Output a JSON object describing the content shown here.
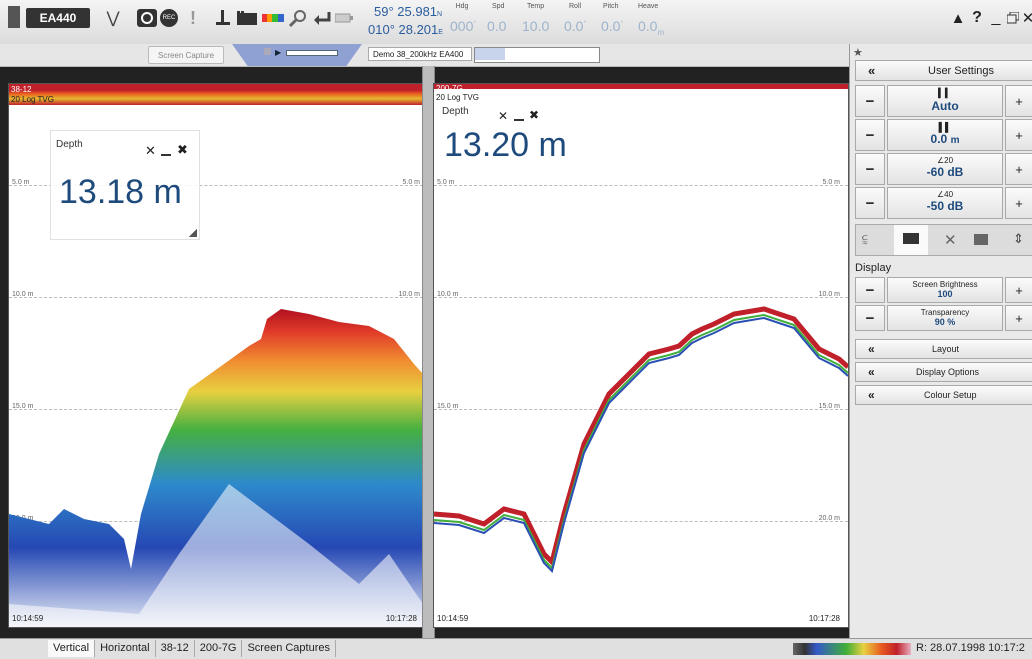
{
  "toolbar": {
    "logo_text": "EA440",
    "screen_capture_label": "Screen Capture",
    "source_label": "Demo 38_200kHz EA400",
    "position": {
      "lat": "59° 25.981",
      "lat_hemi": "N",
      "lon": "010° 28.201",
      "lon_hemi": "E"
    },
    "sensors": [
      {
        "label": "Hdg",
        "value": "000",
        "unit": "°"
      },
      {
        "label": "Spd",
        "value": "0.0",
        "unit": ""
      },
      {
        "label": "Temp",
        "value": "10.0",
        "unit": ""
      },
      {
        "label": "Roll",
        "value": "0.0",
        "unit": "°"
      },
      {
        "label": "Pitch",
        "value": "0.0",
        "unit": "°"
      },
      {
        "label": "Heave",
        "value": "0.0",
        "unit": "m"
      }
    ],
    "help_label": "?",
    "icons": [
      "logo-icon",
      "collapse-icon",
      "camera-icon",
      "record-icon",
      "alert-icon",
      "depth-icon",
      "bars-icon",
      "colorbar-icon",
      "zoom-icon",
      "return-icon",
      "battery-icon",
      "warning-icon",
      "minimize-icon",
      "restore-icon",
      "close-icon"
    ]
  },
  "left_echogram": {
    "channel": "38-12",
    "tvg": "20 Log TVG",
    "depth_title": "Depth",
    "depth_value": "13.18 m",
    "grid_labels": [
      "5.0 m",
      "10.0 m",
      "15.0 m",
      "20.0 m"
    ],
    "time_start": "10:14:59",
    "time_end": "10:17:28"
  },
  "right_echogram": {
    "channel": "200-7G",
    "tvg": "20 Log TVG",
    "depth_title": "Depth",
    "depth_value": "13.20 m",
    "grid_labels": [
      "5.0 m",
      "10.0 m",
      "15.0 m",
      "20.0 m"
    ],
    "time_start": "10:14:59",
    "time_end": "10:17:28"
  },
  "right_pane": {
    "user_settings": "User Settings",
    "collapse_glyph": "«",
    "minus": "−",
    "plus": "+",
    "controls": [
      {
        "icon": "gain-icon",
        "value": "Auto",
        "sup": ""
      },
      {
        "icon": "range-icon",
        "value": "0.0",
        "unit": "m",
        "sup": ""
      },
      {
        "icon": "angle-icon",
        "value": "-60",
        "unit": "dB",
        "sup": "20"
      },
      {
        "icon": "angle-icon",
        "value": "-50",
        "unit": "dB",
        "sup": "40"
      }
    ],
    "tab_icons": [
      "transducer-icon",
      "display-icon",
      "tools-icon",
      "layout-icon",
      "expand-icon"
    ],
    "display_label": "Display",
    "display_controls": [
      {
        "label": "Screen Brightness",
        "value": "100",
        "unit": ""
      },
      {
        "label": "Transparency",
        "value": "90",
        "unit": "%"
      }
    ],
    "menu": [
      "Layout",
      "Display Options",
      "Colour Setup"
    ]
  },
  "bottom": {
    "tabs": [
      "Vertical",
      "Horizontal",
      "38-12",
      "200-7G",
      "Screen Captures"
    ],
    "replay": "R: 28.07.1998  10:17:2"
  },
  "colors": {
    "accent": "#2a5d9f",
    "depth_text": "#1e4a7c",
    "echo_red": "#c0202a",
    "echo_green": "#3fae3a",
    "echo_blue": "#2a4fb5"
  }
}
